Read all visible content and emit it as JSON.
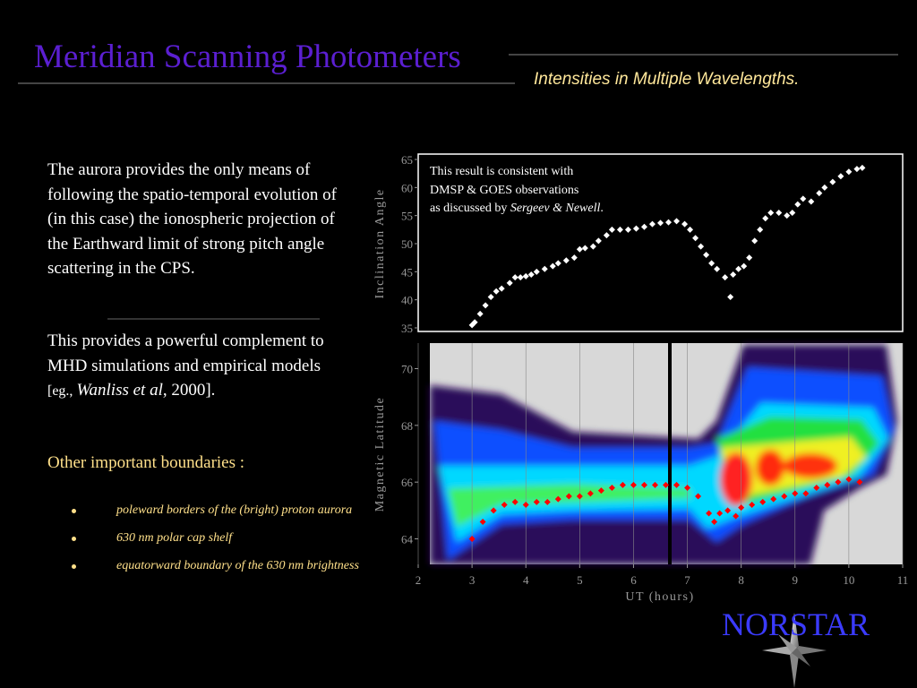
{
  "header": {
    "title": "Meridian Scanning Photometers",
    "subtitle": "Intensities in Multiple Wavelengths."
  },
  "body": {
    "paragraph1": "The aurora provides the only means of following the spatio-temporal evolution of (in this case) the ionospheric projection of the Earthward limit of strong pitch angle scattering in the CPS.",
    "paragraph2": [
      "This provides a powerful complement to MHD simulations and empirical models ",
      "[eg., ",
      "Wanliss et al",
      ", 2000]."
    ],
    "heading": "Other important boundaries :",
    "bullets": [
      "poleward borders of the (bright) proton aurora",
      "630 nm polar cap shelf",
      "equatorward boundary of the 630 nm brightness"
    ]
  },
  "chart_data": [
    {
      "type": "scatter",
      "ylabel": "Inclination Angle",
      "annotation": [
        "This result is consistent with",
        "DMSP & GOES observations",
        "as discussed by ",
        "Sergeev & Newell",
        "."
      ],
      "x": [
        3.0,
        3.05,
        3.15,
        3.25,
        3.35,
        3.45,
        3.55,
        3.7,
        3.8,
        3.9,
        4.0,
        4.1,
        4.2,
        4.35,
        4.5,
        4.6,
        4.75,
        4.9,
        5.0,
        5.1,
        5.25,
        5.35,
        5.5,
        5.6,
        5.75,
        5.9,
        6.05,
        6.2,
        6.35,
        6.5,
        6.65,
        6.8,
        6.95,
        7.05,
        7.15,
        7.25,
        7.35,
        7.45,
        7.55,
        7.7,
        7.8,
        7.85,
        7.95,
        8.05,
        8.15,
        8.25,
        8.35,
        8.45,
        8.55,
        8.7,
        8.85,
        8.95,
        9.05,
        9.15,
        9.3,
        9.45,
        9.55,
        9.7,
        9.85,
        10.0,
        10.15,
        10.25
      ],
      "values": [
        35.5,
        36,
        37.5,
        39,
        40.5,
        41.5,
        42,
        43,
        44,
        44,
        44.2,
        44.5,
        45,
        45.5,
        46,
        46.5,
        47,
        47.5,
        49,
        49.2,
        49.5,
        50.5,
        51.5,
        52.5,
        52.5,
        52.5,
        52.7,
        53,
        53.5,
        53.7,
        53.8,
        54,
        53.5,
        52.5,
        51,
        49.5,
        48,
        46.5,
        45.5,
        44,
        40.5,
        44.5,
        45.5,
        46,
        47.5,
        50.5,
        52.5,
        54.5,
        55.5,
        55.5,
        55,
        55.5,
        57,
        58,
        57.5,
        59,
        60,
        61,
        62,
        62.8,
        63.3,
        63.5
      ],
      "color": "#ffffff",
      "xlim": [
        2,
        11
      ],
      "ylim": [
        35,
        65
      ],
      "yticks": [
        35,
        40,
        45,
        50,
        55,
        60,
        65
      ]
    },
    {
      "type": "scatter",
      "ylabel": "Magnetic Latitude",
      "xlabel": "UT (hours)",
      "x": [
        3.0,
        3.2,
        3.4,
        3.6,
        3.8,
        4.0,
        4.2,
        4.4,
        4.6,
        4.8,
        5.0,
        5.2,
        5.4,
        5.6,
        5.8,
        6.0,
        6.2,
        6.4,
        6.6,
        6.8,
        7.0,
        7.2,
        7.4,
        7.5,
        7.6,
        7.75,
        7.9,
        8.0,
        8.2,
        8.4,
        8.6,
        8.8,
        9.0,
        9.2,
        9.4,
        9.6,
        9.8,
        10.0,
        10.2
      ],
      "values": [
        64.0,
        64.6,
        65.0,
        65.2,
        65.3,
        65.2,
        65.3,
        65.3,
        65.4,
        65.5,
        65.5,
        65.6,
        65.7,
        65.8,
        65.9,
        65.9,
        65.9,
        65.9,
        65.9,
        65.9,
        65.8,
        65.5,
        64.9,
        64.6,
        64.9,
        65.0,
        64.8,
        65.1,
        65.2,
        65.3,
        65.4,
        65.5,
        65.6,
        65.6,
        65.8,
        65.9,
        66.0,
        66.1,
        66.0
      ],
      "color": "#ff0000",
      "xlim": [
        2,
        11
      ],
      "ylim": [
        63.1,
        70.9
      ],
      "xticks": [
        2,
        3,
        4,
        5,
        6,
        7,
        8,
        9,
        10,
        11
      ],
      "yticks": [
        64,
        66,
        68,
        70
      ],
      "grid": true
    }
  ],
  "logo": "NORSTAR"
}
